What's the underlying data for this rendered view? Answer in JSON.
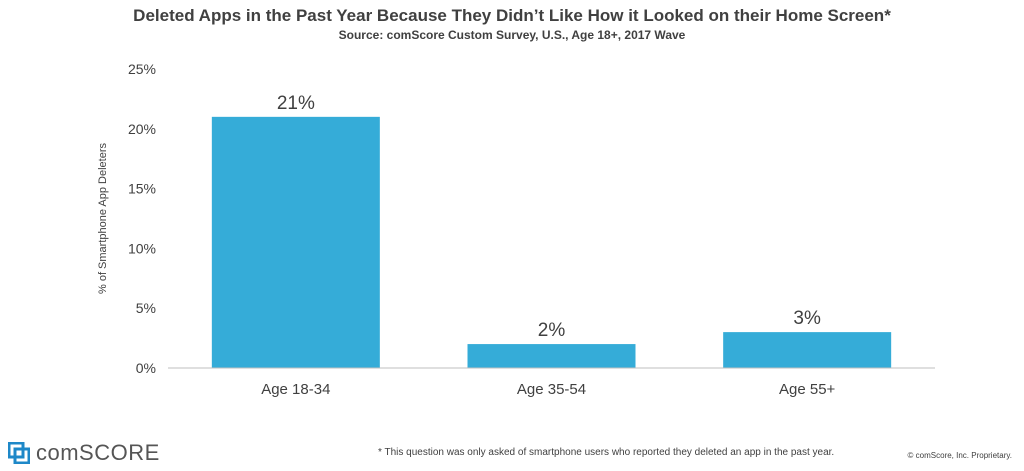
{
  "chart_data": {
    "type": "bar",
    "title": "Deleted Apps in the Past Year Because They Didn’t Like How it Looked on their Home Screen*",
    "subtitle": "Source: comScore Custom Survey, U.S., Age 18+, 2017 Wave",
    "ylabel": "% of Smartphone App Deleters",
    "xlabel": "",
    "categories": [
      "Age 18-34",
      "Age 35-54",
      "Age 55+"
    ],
    "values": [
      21,
      2,
      3
    ],
    "data_labels": [
      "21%",
      "2%",
      "3%"
    ],
    "ylim": [
      0,
      25
    ],
    "yticks": [
      0,
      5,
      10,
      15,
      20,
      25
    ],
    "ytick_labels": [
      "0%",
      "5%",
      "10%",
      "15%",
      "20%",
      "25%"
    ],
    "bar_color": "#35ACD8",
    "grid": false,
    "legend": "none"
  },
  "footer": {
    "logo_text": "comSCORE",
    "footnote": "* This question was only asked of smartphone users who reported they deleted an app in the past year.",
    "copyright": "© comScore, Inc. Proprietary."
  },
  "colors": {
    "logo_blue": "#1E88C8",
    "axis": "#BFBFBF"
  }
}
